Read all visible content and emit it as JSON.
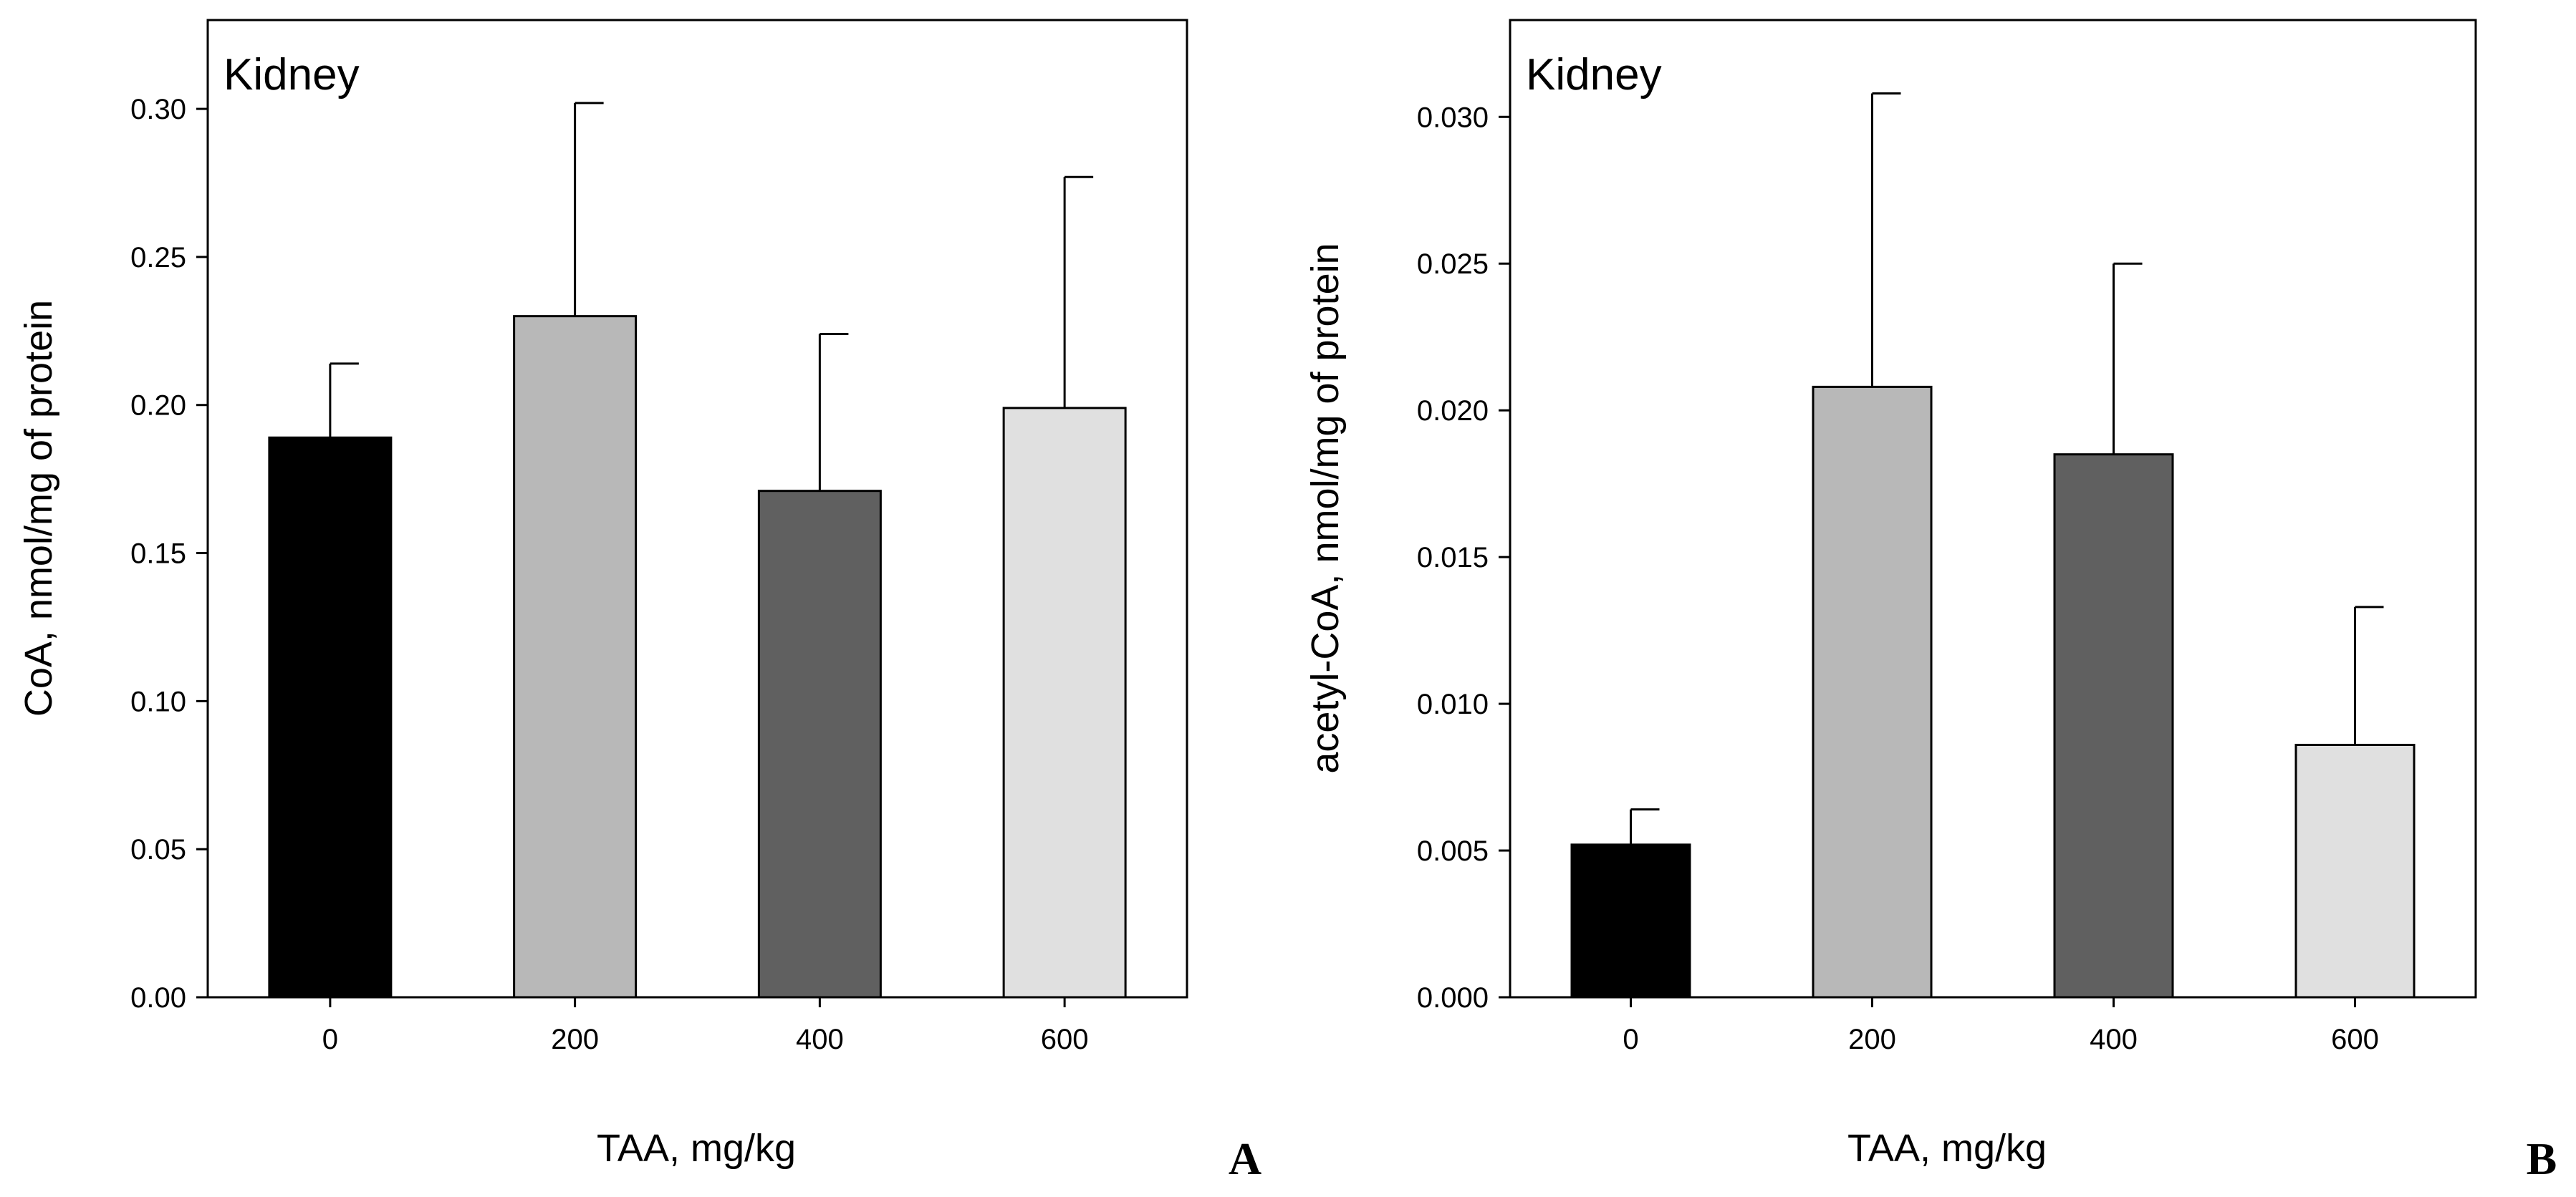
{
  "chart_data": [
    {
      "type": "bar",
      "panel_label": "A",
      "title": "Kidney",
      "xlabel": "TAA, mg/kg",
      "ylabel": "CoA, nmol/mg of protein",
      "categories": [
        "0",
        "200",
        "400",
        "600"
      ],
      "values": [
        0.189,
        0.23,
        0.171,
        0.199
      ],
      "errors": [
        0.025,
        0.072,
        0.053,
        0.078
      ],
      "colors": [
        "#000000",
        "#b8b8b8",
        "#606060",
        "#e0e0e0"
      ],
      "ylim": [
        0,
        0.33
      ],
      "yticks": [
        0.0,
        0.05,
        0.1,
        0.15,
        0.2,
        0.25,
        0.3
      ],
      "ytick_labels": [
        "0.00",
        "0.05",
        "0.10",
        "0.15",
        "0.20",
        "0.25",
        "0.30"
      ],
      "grid": false
    },
    {
      "type": "bar",
      "panel_label": "B",
      "title": "Kidney",
      "xlabel": "TAA, mg/kg",
      "ylabel": "acetyl-CoA, nmol/mg of protein",
      "categories": [
        "0",
        "200",
        "400",
        "600"
      ],
      "values": [
        0.0052,
        0.0208,
        0.0185,
        0.0086
      ],
      "errors": [
        0.0012,
        0.01,
        0.0065,
        0.0047
      ],
      "colors": [
        "#000000",
        "#b8b8b8",
        "#606060",
        "#e0e0e0"
      ],
      "ylim": [
        0,
        0.0333
      ],
      "yticks": [
        0.0,
        0.005,
        0.01,
        0.015,
        0.02,
        0.025,
        0.03
      ],
      "ytick_labels": [
        "0.000",
        "0.005",
        "0.010",
        "0.015",
        "0.020",
        "0.025",
        "0.030"
      ],
      "grid": false
    }
  ]
}
